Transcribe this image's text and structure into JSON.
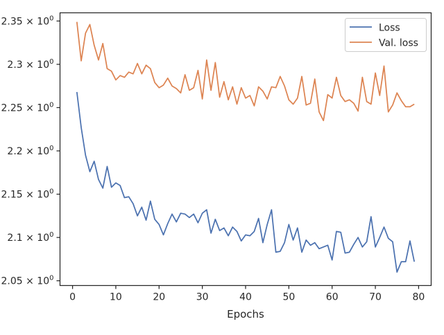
{
  "chart_data": {
    "type": "line",
    "title": "",
    "xlabel": "Epochs",
    "ylabel": "",
    "xlim": [
      -2.9,
      82.9
    ],
    "ylim": [
      2.0445,
      2.3595
    ],
    "x_ticks": [
      0,
      10,
      20,
      30,
      40,
      50,
      60,
      70,
      80
    ],
    "y_ticks": [
      {
        "value": 2.05,
        "mantissa": "2.05"
      },
      {
        "value": 2.1,
        "mantissa": "2.1"
      },
      {
        "value": 2.15,
        "mantissa": "2.15"
      },
      {
        "value": 2.2,
        "mantissa": "2.2"
      },
      {
        "value": 2.25,
        "mantissa": "2.25"
      },
      {
        "value": 2.3,
        "mantissa": "2.3"
      },
      {
        "value": 2.35,
        "mantissa": "2.35"
      }
    ],
    "y_tick_multiplier": "× 10",
    "y_tick_exponent": "0",
    "grid": false,
    "legend_position": "top-right",
    "x": [
      1,
      2,
      3,
      4,
      5,
      6,
      7,
      8,
      9,
      10,
      11,
      12,
      13,
      14,
      15,
      16,
      17,
      18,
      19,
      20,
      21,
      22,
      23,
      24,
      25,
      26,
      27,
      28,
      29,
      30,
      31,
      32,
      33,
      34,
      35,
      36,
      37,
      38,
      39,
      40,
      41,
      42,
      43,
      44,
      45,
      46,
      47,
      48,
      49,
      50,
      51,
      52,
      53,
      54,
      55,
      56,
      57,
      58,
      59,
      60,
      61,
      62,
      63,
      64,
      65,
      66,
      67,
      68,
      69,
      70,
      71,
      72,
      73,
      74,
      75,
      76,
      77,
      78,
      79
    ],
    "series": [
      {
        "name": "Loss",
        "color": "#4c72b0",
        "values": [
          2.268,
          2.227,
          2.195,
          2.176,
          2.188,
          2.167,
          2.157,
          2.182,
          2.158,
          2.163,
          2.16,
          2.146,
          2.147,
          2.139,
          2.125,
          2.135,
          2.12,
          2.142,
          2.121,
          2.115,
          2.103,
          2.116,
          2.127,
          2.118,
          2.128,
          2.127,
          2.123,
          2.127,
          2.117,
          2.128,
          2.132,
          2.105,
          2.121,
          2.108,
          2.111,
          2.102,
          2.112,
          2.107,
          2.096,
          2.103,
          2.102,
          2.107,
          2.122,
          2.094,
          2.115,
          2.132,
          2.083,
          2.084,
          2.094,
          2.115,
          2.097,
          2.111,
          2.083,
          2.097,
          2.091,
          2.094,
          2.087,
          2.089,
          2.091,
          2.074,
          2.107,
          2.106,
          2.082,
          2.083,
          2.092,
          2.1,
          2.089,
          2.095,
          2.124,
          2.089,
          2.1,
          2.112,
          2.099,
          2.095,
          2.06,
          2.072,
          2.072,
          2.096,
          2.072
        ]
      },
      {
        "name": "Val. loss",
        "color": "#dd8452",
        "values": [
          2.349,
          2.304,
          2.336,
          2.346,
          2.322,
          2.305,
          2.324,
          2.295,
          2.292,
          2.282,
          2.287,
          2.285,
          2.291,
          2.289,
          2.301,
          2.289,
          2.299,
          2.295,
          2.279,
          2.273,
          2.276,
          2.284,
          2.275,
          2.272,
          2.267,
          2.288,
          2.27,
          2.273,
          2.293,
          2.26,
          2.305,
          2.27,
          2.302,
          2.262,
          2.28,
          2.259,
          2.274,
          2.254,
          2.273,
          2.261,
          2.264,
          2.252,
          2.274,
          2.269,
          2.26,
          2.274,
          2.273,
          2.286,
          2.275,
          2.259,
          2.254,
          2.261,
          2.286,
          2.253,
          2.255,
          2.283,
          2.245,
          2.235,
          2.265,
          2.261,
          2.285,
          2.264,
          2.257,
          2.259,
          2.255,
          2.246,
          2.285,
          2.257,
          2.254,
          2.29,
          2.264,
          2.298,
          2.245,
          2.253,
          2.267,
          2.258,
          2.251,
          2.251,
          2.254
        ]
      }
    ]
  }
}
